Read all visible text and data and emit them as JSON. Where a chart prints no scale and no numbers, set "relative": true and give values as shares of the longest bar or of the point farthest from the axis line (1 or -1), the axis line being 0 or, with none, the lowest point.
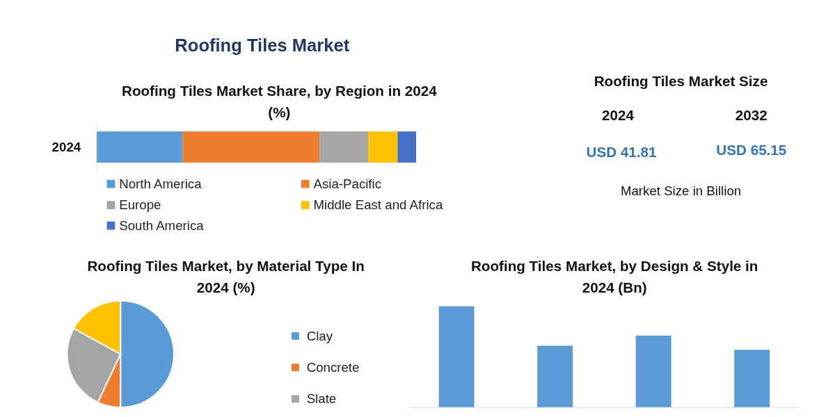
{
  "chart_data": [
    {
      "type": "other",
      "title": "Roofing Tiles Market"
    },
    {
      "type": "bar",
      "title": "Roofing Tiles Market Share, by Region in 2024 (%)",
      "categories": [
        "2024"
      ],
      "orientation": "horizontal",
      "stacked": true,
      "relative": true,
      "legend": "bottom",
      "series": [
        {
          "name": "North America",
          "color": "#5b9bd5",
          "values": [
            0.27
          ]
        },
        {
          "name": "Asia-Pacific",
          "color": "#ed7d31",
          "values": [
            0.428
          ]
        },
        {
          "name": "Europe",
          "color": "#a5a5a5",
          "values": [
            0.152
          ]
        },
        {
          "name": "Middle East and Africa",
          "color": "#ffc000",
          "values": [
            0.092
          ]
        },
        {
          "name": "South America",
          "color": "#4472c4",
          "values": [
            0.058
          ]
        }
      ]
    },
    {
      "type": "other",
      "title": "Roofing Tiles Market Size",
      "annotations": [
        "2024",
        "2032",
        "USD 41.81",
        "USD 65.15",
        "Market Size in Billion"
      ]
    },
    {
      "type": "pie",
      "title": "Roofing Tiles Market, by Material Type In 2024 (%)",
      "categories": [
        "Clay",
        "Concrete",
        "Slate",
        null
      ],
      "values": [
        50,
        7,
        26,
        17
      ],
      "colors": [
        "#5b9bd5",
        "#ed7d31",
        "#a5a5a5",
        "#ffc000"
      ],
      "legend": "right"
    },
    {
      "type": "bar",
      "title": "Roofing Tiles Market, by Design & Style in 2024 (Bn)",
      "categories": [
        null,
        null,
        null,
        null
      ],
      "values": [
        1,
        0.61,
        0.71,
        0.57
      ],
      "color": "#5b9bd5",
      "relative": true
    }
  ]
}
